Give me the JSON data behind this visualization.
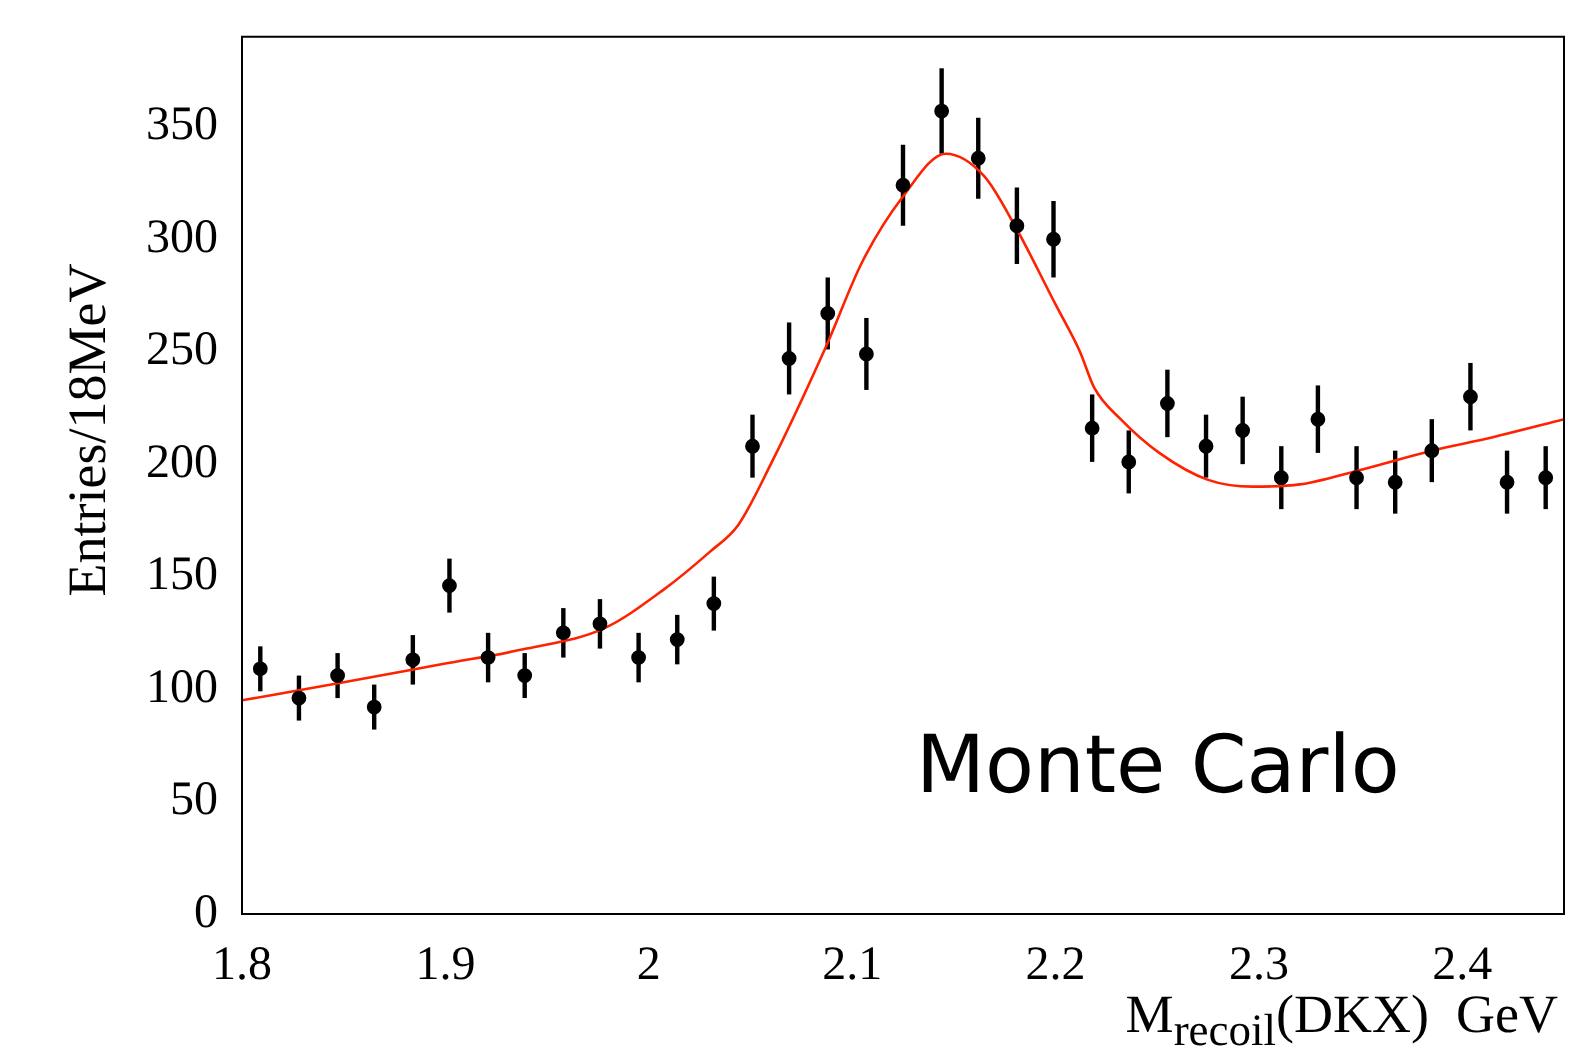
{
  "chart_data": {
    "type": "scatter",
    "xlabel": "M$_{recoil}$(DKX)  GeV",
    "ylabel": "Entries/18MeV",
    "annotations": [
      "Monte Carlo"
    ],
    "xlim": [
      1.8,
      2.45
    ],
    "xticks": [
      1.8,
      1.9,
      2,
      2.1,
      2.2,
      2.3,
      2.4
    ],
    "ylim": [
      0,
      390
    ],
    "yticks": [
      0,
      50,
      100,
      150,
      200,
      250,
      300,
      350
    ],
    "grid": false,
    "legend": false,
    "series": [
      {
        "color": "#000000",
        "marker": "circle",
        "x": [
          1.809,
          1.828,
          1.847,
          1.865,
          1.884,
          1.902,
          1.921,
          1.939,
          1.958,
          1.976,
          1.995,
          2.014,
          2.032,
          2.051,
          2.069,
          2.088,
          2.107,
          2.125,
          2.144,
          2.162,
          2.181,
          2.199,
          2.218,
          2.236,
          2.255,
          2.274,
          2.292,
          2.311,
          2.329,
          2.348,
          2.367,
          2.385,
          2.404,
          2.422,
          2.441
        ],
        "values": [
          109,
          96,
          106,
          92,
          113,
          146,
          114,
          106,
          125,
          129,
          114,
          122,
          138,
          208,
          247,
          267,
          249,
          324,
          357,
          336,
          306,
          300,
          216,
          201,
          227,
          208,
          215,
          194,
          220,
          194,
          192,
          206,
          230,
          192,
          194
        ],
        "errors": [
          10,
          10,
          10,
          10,
          11,
          12,
          11,
          10,
          11,
          11,
          11,
          11,
          12,
          14,
          16,
          16,
          16,
          18,
          19,
          18,
          17,
          17,
          15,
          14,
          15,
          14,
          15,
          14,
          15,
          14,
          14,
          14,
          15,
          14,
          14
        ]
      },
      {
        "type": "line",
        "color": "#ff2200",
        "marker": "none",
        "line_style": "solid",
        "x": [
          1.8,
          1.85,
          1.898,
          1.94,
          1.978,
          2.007,
          2.03,
          2.044,
          2.06,
          2.087,
          2.105,
          2.125,
          2.146,
          2.165,
          2.18,
          2.2,
          2.212,
          2.219,
          2.232,
          2.251,
          2.275,
          2.297,
          2.32,
          2.348,
          2.385,
          2.415,
          2.45
        ],
        "values": [
          95,
          103,
          111,
          118,
          127,
          144,
          161,
          173,
          200,
          252,
          290,
          319,
          338,
          328,
          306,
          271,
          250,
          234,
          220,
          205,
          193,
          190,
          191,
          197,
          206,
          212,
          220
        ]
      }
    ]
  }
}
